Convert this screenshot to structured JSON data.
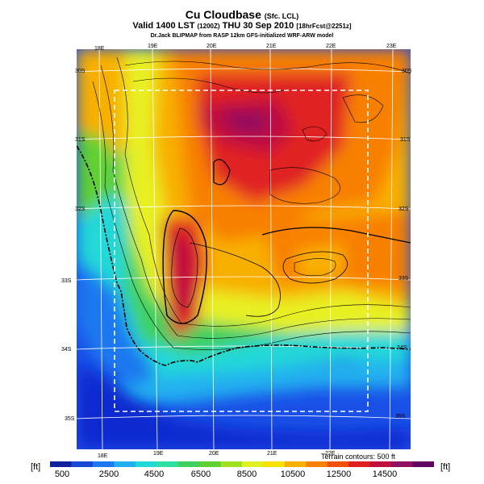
{
  "title": {
    "main": "Cu Cloudbase",
    "main_suffix": "(Sfc. LCL)",
    "valid": "Valid 1400 LST",
    "valid_utc": "(1200Z)",
    "valid_date": "THU 30 Sep 2010",
    "forecast": "[18hrFcst@2251z]",
    "credit": "Dr.Jack BLIPMAP from RASP 12km GFS-initialized WRF-ARW model"
  },
  "lon_labels_top": [
    "18E",
    "19E",
    "20E",
    "21E",
    "22E",
    "23E"
  ],
  "lon_labels_bottom": [
    "18E",
    "19E",
    "20E",
    "21E",
    "22E"
  ],
  "lat_labels_left": [
    "30S",
    "31S",
    "32S",
    "33S",
    "34S",
    "35S"
  ],
  "lat_labels_right": [
    "30S",
    "31S",
    "32S",
    "33S",
    "34S",
    "35S"
  ],
  "colorbar": {
    "unit_left": "[ft]",
    "unit_right": "[ft]",
    "tick_labels": [
      "500",
      "2500",
      "4500",
      "6500",
      "8500",
      "10500",
      "12500",
      "14500"
    ],
    "colors": [
      "#1020a0",
      "#1848d8",
      "#1e78f0",
      "#20b0f0",
      "#20d8d8",
      "#30e0a0",
      "#40d060",
      "#60d030",
      "#a0e020",
      "#e0f020",
      "#f8e000",
      "#f8b000",
      "#f88000",
      "#f05000",
      "#e02020",
      "#c01040",
      "#901060",
      "#600060"
    ]
  },
  "terrain_note": "Terrain contours: 500 ft",
  "colors": {
    "grid": "#ffffff",
    "coast": "#000000",
    "box": "#ffffff",
    "sea_deep": "#0a2ad0",
    "sea": "#1a50e8",
    "low": "#20c8d8",
    "mid": "#40d060",
    "yellow": "#e8f020",
    "orange": "#f88000",
    "red": "#e02020",
    "purple": "#901060"
  }
}
